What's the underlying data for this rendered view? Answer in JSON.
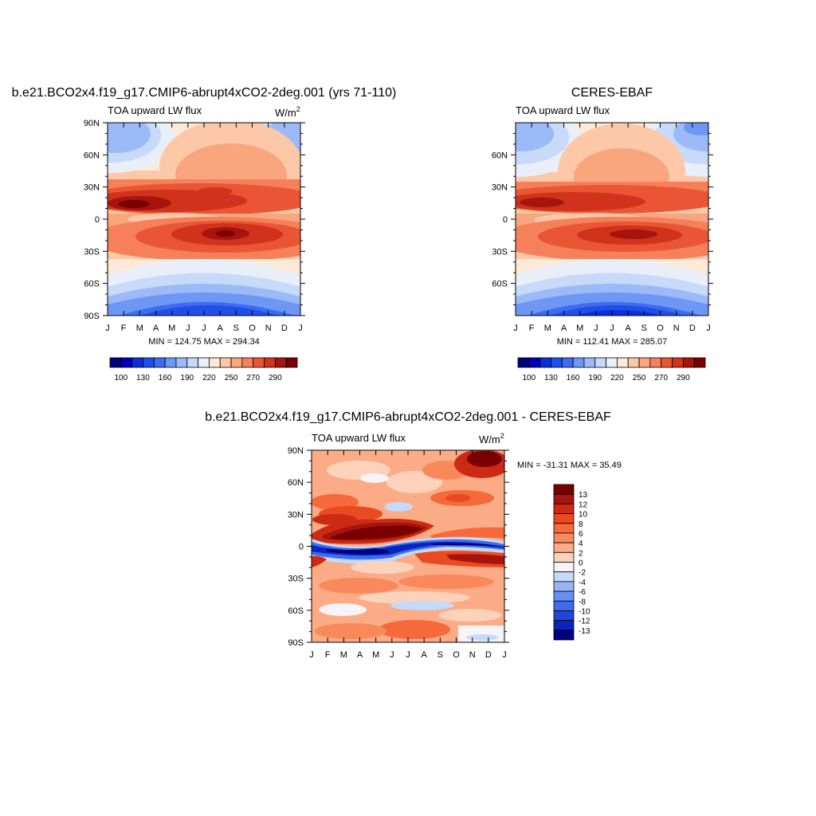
{
  "chart_data": [
    {
      "type": "heatmap",
      "panel": "model",
      "title": "b.e21.BCO2x4.f19_g17.CMIP6-abrupt4xCO2-2deg.001 (yrs 71-110)",
      "subtitle_left": "TOA upward LW flux",
      "units_base": "W/m",
      "units_sup": "2",
      "x_tick_labels": [
        "J",
        "F",
        "M",
        "A",
        "M",
        "J",
        "J",
        "A",
        "S",
        "O",
        "N",
        "D",
        "J"
      ],
      "y_tick_labels": [
        "90N",
        "60N",
        "30N",
        "0",
        "30S",
        "60S",
        "90S"
      ],
      "y_range": [
        -90,
        90
      ],
      "x_range": [
        0,
        12
      ],
      "stats": "MIN = 124.75 MAX = 294.34",
      "min": 124.75,
      "max": 294.34,
      "colorbar": {
        "orientation": "horizontal",
        "levels": [
          100,
          115,
          130,
          145,
          160,
          175,
          190,
          205,
          220,
          235,
          250,
          260,
          270,
          280,
          290
        ],
        "tick_labels": [
          "100",
          "130",
          "160",
          "190",
          "220",
          "250",
          "270",
          "290"
        ],
        "colors": [
          "#00007f",
          "#0000b7",
          "#0a2fd6",
          "#1f4fe8",
          "#3d6cf0",
          "#6e96f5",
          "#9dbaf8",
          "#c7daf9",
          "#e9eef9",
          "#fde9d8",
          "#fcc8a7",
          "#f9a57d",
          "#f5805a",
          "#ea5634",
          "#d1321b",
          "#a6140d",
          "#7a0000"
        ]
      }
    },
    {
      "type": "heatmap",
      "panel": "observations",
      "title": "CERES-EBAF",
      "subtitle_left": "TOA upward LW flux",
      "x_tick_labels": [
        "J",
        "F",
        "M",
        "A",
        "M",
        "J",
        "J",
        "A",
        "S",
        "O",
        "N",
        "D",
        "J"
      ],
      "y_tick_labels": [
        "60N",
        "30N",
        "0",
        "30S",
        "60S"
      ],
      "y_range": [
        -90,
        90
      ],
      "x_range": [
        0,
        12
      ],
      "stats": "MIN = 112.41 MAX = 285.07",
      "min": 112.41,
      "max": 285.07,
      "colorbar": {
        "orientation": "horizontal",
        "levels": [
          100,
          115,
          130,
          145,
          160,
          175,
          190,
          205,
          220,
          235,
          250,
          260,
          270,
          280,
          290
        ],
        "tick_labels": [
          "100",
          "130",
          "160",
          "190",
          "220",
          "250",
          "270",
          "290"
        ],
        "colors": [
          "#00007f",
          "#0000b7",
          "#0a2fd6",
          "#1f4fe8",
          "#3d6cf0",
          "#6e96f5",
          "#9dbaf8",
          "#c7daf9",
          "#e9eef9",
          "#fde9d8",
          "#fcc8a7",
          "#f9a57d",
          "#f5805a",
          "#ea5634",
          "#d1321b",
          "#a6140d",
          "#7a0000"
        ]
      }
    },
    {
      "type": "heatmap",
      "panel": "difference",
      "title": "b.e21.BCO2x4.f19_g17.CMIP6-abrupt4xCO2-2deg.001 - CERES-EBAF",
      "subtitle_left": "TOA upward LW flux",
      "units_base": "W/m",
      "units_sup": "2",
      "x_tick_labels": [
        "J",
        "F",
        "M",
        "A",
        "M",
        "J",
        "J",
        "A",
        "S",
        "O",
        "N",
        "D",
        "J"
      ],
      "y_tick_labels": [
        "90N",
        "60N",
        "30N",
        "0",
        "30S",
        "60S",
        "90S"
      ],
      "y_range": [
        -90,
        90
      ],
      "x_range": [
        0,
        12
      ],
      "stats": "MIN = -31.31 MAX =  35.49",
      "min": -31.31,
      "max": 35.49,
      "colorbar": {
        "orientation": "vertical",
        "levels": [
          13,
          12,
          10,
          8,
          6,
          4,
          2,
          0,
          -2,
          -4,
          -6,
          -8,
          -10,
          -12,
          -13
        ],
        "tick_labels": [
          "13",
          "12",
          "10",
          "8",
          "6",
          "4",
          "2",
          "0",
          "-2",
          "-4",
          "-6",
          "-8",
          "-10",
          "-12",
          "-13"
        ],
        "colors": [
          "#7a0000",
          "#a6140d",
          "#cc2a14",
          "#ea4a22",
          "#f5693c",
          "#f9895b",
          "#fbab86",
          "#fdd2bb",
          "#f6f4f6",
          "#c5d9f8",
          "#97b5f5",
          "#6791f1",
          "#3e6cec",
          "#1f47df",
          "#0b24bd",
          "#00007f"
        ]
      }
    }
  ]
}
